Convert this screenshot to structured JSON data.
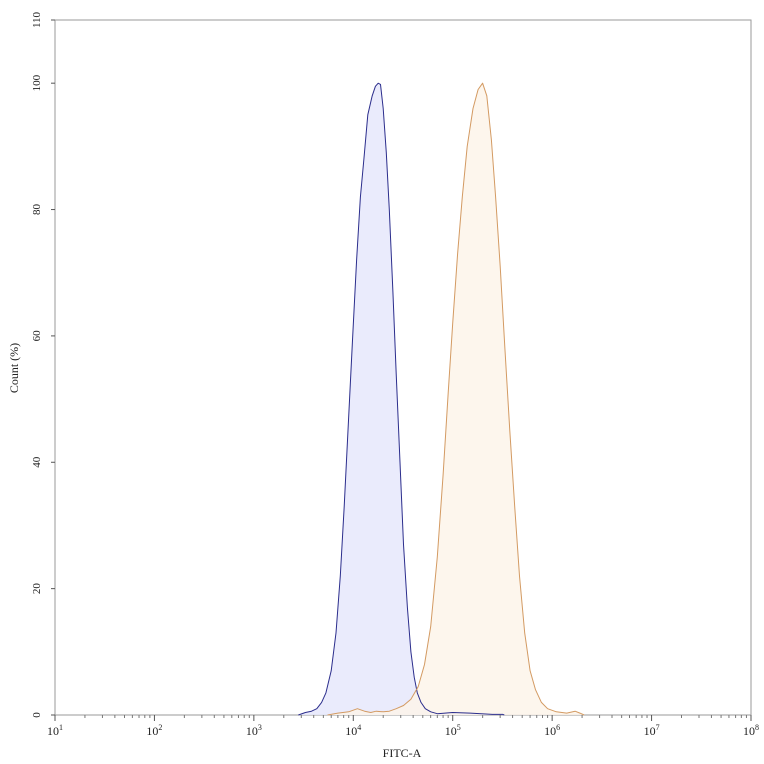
{
  "chart_data": {
    "type": "area",
    "xlabel": "FITC-A",
    "ylabel": "Count (%)",
    "x_scale": "log10",
    "xlim": [
      10,
      100000000
    ],
    "ylim": [
      0,
      110
    ],
    "x_tick_labels": [
      {
        "base": "10",
        "exp": "1",
        "value": 10
      },
      {
        "base": "10",
        "exp": "2",
        "value": 100
      },
      {
        "base": "10",
        "exp": "3",
        "value": 1000
      },
      {
        "base": "10",
        "exp": "4",
        "value": 10000
      },
      {
        "base": "10",
        "exp": "5",
        "value": 100000
      },
      {
        "base": "10",
        "exp": "6",
        "value": 1000000
      },
      {
        "base": "10",
        "exp": "7",
        "value": 10000000
      },
      {
        "base": "10",
        "exp": "8",
        "value": 100000000
      }
    ],
    "y_ticks": [
      0,
      20,
      40,
      60,
      80,
      100,
      110
    ],
    "grid": false,
    "legend": "none",
    "series": [
      {
        "line_color": "#2b2d8c",
        "fill_color": "#e6e7fb",
        "points": [
          [
            2800,
            0
          ],
          [
            3300,
            0.4
          ],
          [
            3800,
            0.6
          ],
          [
            4300,
            1.0
          ],
          [
            4800,
            2.0
          ],
          [
            5300,
            3.5
          ],
          [
            6000,
            7
          ],
          [
            6700,
            13
          ],
          [
            7400,
            22
          ],
          [
            8100,
            33
          ],
          [
            8900,
            46
          ],
          [
            9800,
            59
          ],
          [
            10800,
            72
          ],
          [
            11800,
            82
          ],
          [
            12800,
            88
          ],
          [
            14000,
            95
          ],
          [
            15500,
            98
          ],
          [
            16700,
            99.5
          ],
          [
            17800,
            100
          ],
          [
            18800,
            99.8
          ],
          [
            20000,
            96
          ],
          [
            21500,
            89
          ],
          [
            23000,
            80
          ],
          [
            25000,
            67
          ],
          [
            27000,
            54
          ],
          [
            29500,
            40
          ],
          [
            32000,
            27
          ],
          [
            35000,
            17
          ],
          [
            38000,
            10
          ],
          [
            41000,
            6
          ],
          [
            44000,
            3.5
          ],
          [
            48000,
            2
          ],
          [
            53000,
            1
          ],
          [
            60000,
            0.5
          ],
          [
            70000,
            0.2
          ],
          [
            100000,
            0.4
          ],
          [
            150000,
            0.3
          ],
          [
            250000,
            0.1
          ],
          [
            320000,
            0.1
          ],
          [
            330000,
            0
          ]
        ]
      },
      {
        "line_color": "#d39a62",
        "fill_color": "#fdf4ea",
        "points": [
          [
            5500,
            0
          ],
          [
            7000,
            0.3
          ],
          [
            9000,
            0.5
          ],
          [
            11000,
            1.0
          ],
          [
            13000,
            0.6
          ],
          [
            15000,
            0.4
          ],
          [
            17000,
            0.6
          ],
          [
            20000,
            0.5
          ],
          [
            23000,
            0.6
          ],
          [
            27000,
            1.0
          ],
          [
            32000,
            1.5
          ],
          [
            38000,
            2.5
          ],
          [
            45000,
            4.5
          ],
          [
            52000,
            8
          ],
          [
            60000,
            14
          ],
          [
            70000,
            25
          ],
          [
            80000,
            38
          ],
          [
            90000,
            51
          ],
          [
            100000,
            62
          ],
          [
            112000,
            73
          ],
          [
            125000,
            82
          ],
          [
            140000,
            90
          ],
          [
            160000,
            96
          ],
          [
            180000,
            99
          ],
          [
            200000,
            100
          ],
          [
            220000,
            98
          ],
          [
            245000,
            91
          ],
          [
            270000,
            82
          ],
          [
            300000,
            71
          ],
          [
            335000,
            58
          ],
          [
            375000,
            45
          ],
          [
            420000,
            33
          ],
          [
            470000,
            22
          ],
          [
            530000,
            13
          ],
          [
            600000,
            7
          ],
          [
            680000,
            4
          ],
          [
            780000,
            2
          ],
          [
            900000,
            1
          ],
          [
            1100000,
            0.5
          ],
          [
            1400000,
            0.3
          ],
          [
            1700000,
            0.6
          ],
          [
            1900000,
            0.3
          ],
          [
            2100000,
            0
          ]
        ]
      }
    ]
  }
}
